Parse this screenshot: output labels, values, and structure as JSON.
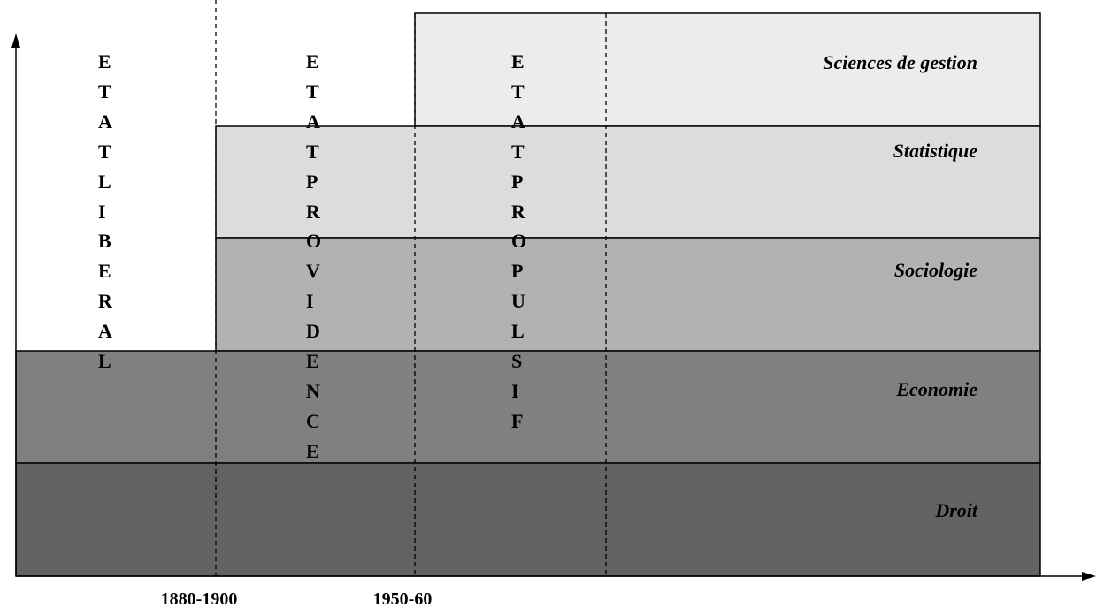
{
  "layers": [
    {
      "label": "Sciences de gestion"
    },
    {
      "label": "Statistique"
    },
    {
      "label": "Sociologie"
    },
    {
      "label": "Economie"
    },
    {
      "label": "Droit"
    }
  ],
  "periods": [
    {
      "label": "ETAT LIBERAL"
    },
    {
      "label": "ETAT PROVIDENCE"
    },
    {
      "label": "ETAT PROPULSIF"
    }
  ],
  "x_labels": [
    "1880-1900",
    "1950-60"
  ]
}
